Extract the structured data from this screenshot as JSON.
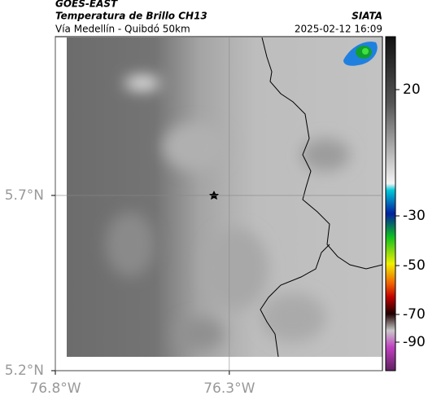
{
  "header": {
    "source": "GOES-EAST",
    "title": "Temperatura de Brillo CH13",
    "subtitle": "Vía Medellín - Quibdó 50km",
    "brand": "SIATA",
    "datetime": "2025-02-12 16:09"
  },
  "map": {
    "xlim": [
      -76.8,
      -75.86
    ],
    "ylim": [
      5.2,
      6.153
    ],
    "xticks": [
      {
        "value": -76.8,
        "label": "76.8°W"
      },
      {
        "value": -76.3,
        "label": "76.3°W"
      }
    ],
    "yticks": [
      {
        "value": 5.2,
        "label": "5.2°N"
      },
      {
        "value": 5.7,
        "label": "5.7°N"
      }
    ],
    "grid": true
  },
  "colorbar": {
    "ticks": [
      20,
      -30,
      -50,
      -70,
      -90
    ]
  }
}
